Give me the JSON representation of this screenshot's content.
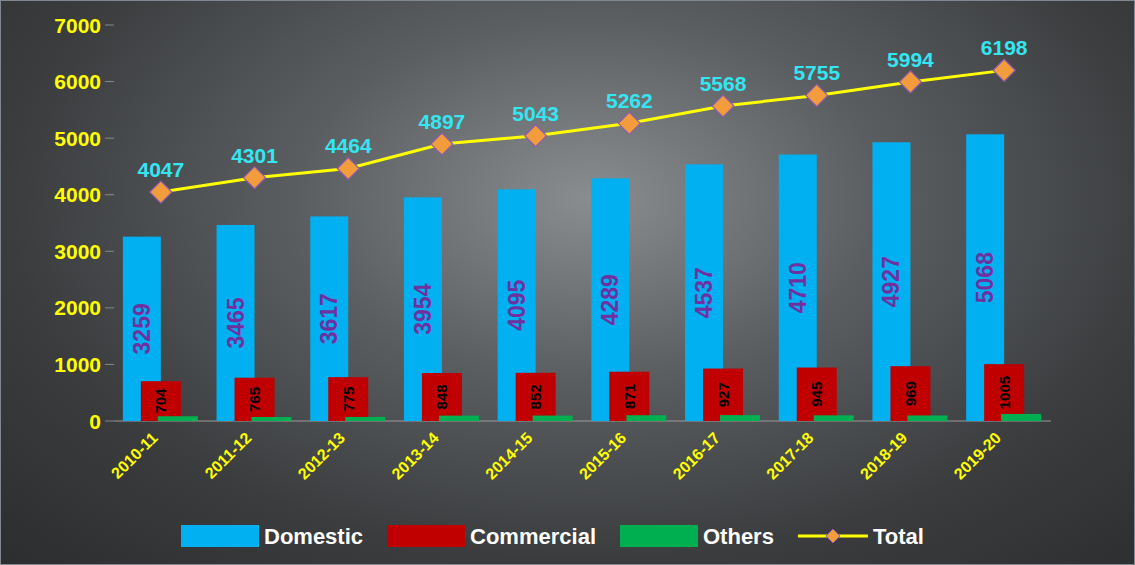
{
  "chart_data": {
    "type": "bar",
    "categories": [
      "2010-11",
      "2011-12",
      "2012-13",
      "2013-14",
      "2014-15",
      "2015-16",
      "2016-17",
      "2017-18",
      "2018-19",
      "2019-20"
    ],
    "series": [
      {
        "name": "Domestic",
        "type": "bar",
        "color": "#00b0f0",
        "data_labels": true,
        "values": [
          3259,
          3465,
          3617,
          3954,
          4095,
          4289,
          4537,
          4710,
          4927,
          5068
        ]
      },
      {
        "name": "Commercial",
        "type": "bar",
        "color": "#c00000",
        "data_labels": true,
        "values": [
          704,
          765,
          775,
          848,
          852,
          871,
          927,
          945,
          969,
          1005
        ]
      },
      {
        "name": "Others",
        "type": "bar",
        "color": "#00b050",
        "data_labels": false,
        "values": [
          84,
          71,
          72,
          95,
          96,
          102,
          104,
          100,
          98,
          125
        ]
      },
      {
        "name": "Total",
        "type": "line",
        "color": "#ffff00",
        "marker": "diamond",
        "data_labels": true,
        "values": [
          4047,
          4301,
          4464,
          4897,
          5043,
          5262,
          5568,
          5755,
          5994,
          6198
        ]
      }
    ],
    "ylim": [
      0,
      7000
    ],
    "yticks": [
      0,
      1000,
      2000,
      3000,
      4000,
      5000,
      6000,
      7000
    ],
    "grid": false,
    "legend": "bottom"
  }
}
